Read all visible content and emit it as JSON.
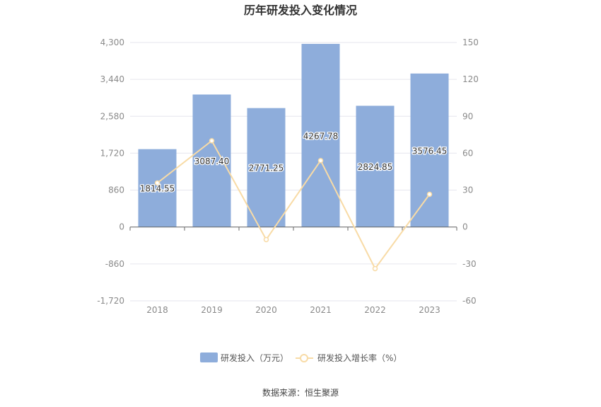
{
  "chart_data": {
    "type": "bar",
    "title": "历年研发投入变化情况",
    "categories": [
      "2018",
      "2019",
      "2020",
      "2021",
      "2022",
      "2023"
    ],
    "series": [
      {
        "name": "研发投入（万元）",
        "type": "bar",
        "axis": "left",
        "values": [
          1814.55,
          3087.4,
          2771.25,
          4267.78,
          2824.85,
          3576.45
        ],
        "labels": [
          "1814.55",
          "3087.40",
          "2771.25",
          "4267.78",
          "2824.85",
          "3576.45"
        ]
      },
      {
        "name": "研发投入增长率（%）",
        "type": "line",
        "axis": "right",
        "values": [
          35.8,
          70.1,
          -10.2,
          54.0,
          -33.8,
          26.6
        ]
      }
    ],
    "y_left": {
      "min": -1720,
      "max": 4300,
      "ticks": [
        "-1,720",
        "-860",
        "0",
        "860",
        "1,720",
        "2,580",
        "3,440",
        "4,300"
      ]
    },
    "y_right": {
      "min": -60,
      "max": 150,
      "ticks": [
        "-60",
        "-30",
        "0",
        "30",
        "60",
        "90",
        "120",
        "150"
      ]
    },
    "grid": true,
    "legend_position": "bottom",
    "colors": {
      "bar": "#8eaddb",
      "line": "#f8dba6",
      "grid": "#e6e6ee",
      "axis": "#666666"
    },
    "source": "数据来源：恒生聚源"
  }
}
